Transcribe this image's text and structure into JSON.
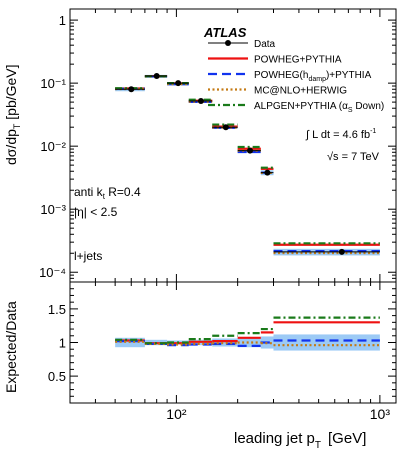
{
  "chart_data": {
    "type": "line",
    "experiment": "ATLAS",
    "xlabel_main": "leading jet p",
    "xlabel_sub": "T",
    "xlabel_unit": "[GeV]",
    "ylabel_top_main": "dσ/dp",
    "ylabel_top_sub": "T",
    "ylabel_top_unit": "[pb/GeV]",
    "ylabel_ratio": "Expected/Data",
    "x_scale": "log",
    "xlim": [
      30,
      1200
    ],
    "ylim_top": [
      7e-05,
      1.5
    ],
    "y_scale_top": "log",
    "ylim_ratio": [
      0.1,
      1.9
    ],
    "x_tick_labels": [
      "10²",
      "10³"
    ],
    "y_tick_labels_top": [
      "1",
      "10⁻¹",
      "10⁻²",
      "10⁻³",
      "10⁻⁴"
    ],
    "y_tick_labels_ratio": [
      "1.5",
      "1",
      "0.5"
    ],
    "annotations": {
      "jet_alg": "anti k",
      "jet_alg_sub": "t",
      "jet_R": " R=0.4",
      "eta_cut": "|η| < 2.5",
      "channel": "l+jets",
      "lumi_prefix": "∫ L dt = 4.6 fb",
      "lumi_sup": "-1",
      "sqrt_s": "√s = 7 TeV"
    },
    "bins": [
      [
        50,
        70
      ],
      [
        70,
        90
      ],
      [
        90,
        115
      ],
      [
        115,
        150
      ],
      [
        150,
        200
      ],
      [
        200,
        260
      ],
      [
        260,
        300
      ],
      [
        300,
        1000
      ]
    ],
    "legend": [
      {
        "label": "Data",
        "color": "#000000",
        "style": "marker"
      },
      {
        "label": "POWHEG+PYTHIA",
        "color": "#ee1111",
        "style": "solid"
      },
      {
        "label": "POWHEG(h",
        "sub": "damp",
        "suffix": ")+PYTHIA",
        "color": "#1133ee",
        "style": "dashed"
      },
      {
        "label": "MC@NLO+HERWIG",
        "color": "#c47a14",
        "style": "dotted"
      },
      {
        "label": "ALPGEN+PYTHIA (α",
        "sub": "S",
        "suffix": " Down)",
        "color": "#1a7a1a",
        "style": "dashdot"
      }
    ],
    "data": {
      "x": [
        60,
        80,
        102,
        132,
        175,
        230,
        280,
        650
      ],
      "y": [
        0.08,
        0.13,
        0.1,
        0.052,
        0.02,
        0.0085,
        0.0038,
        0.00021
      ],
      "rel_unc": [
        0.07,
        0.04,
        0.03,
        0.04,
        0.06,
        0.07,
        0.09,
        0.12
      ]
    },
    "ratios": {
      "POWHEG+PYTHIA": [
        1.03,
        0.99,
        0.99,
        1.01,
        1.02,
        1.07,
        1.15,
        1.3
      ],
      "POWHEG(hdamp)+PYTHIA": [
        1.02,
        0.98,
        0.96,
        0.97,
        0.98,
        0.95,
        1.0,
        1.03
      ],
      "MC@NLO+HERWIG": [
        1.01,
        0.98,
        0.97,
        0.98,
        0.99,
        1.0,
        0.99,
        0.96
      ],
      "ALPGEN+PYTHIA (αS Down)": [
        1.04,
        0.99,
        1.0,
        1.05,
        1.1,
        1.14,
        1.2,
        1.37
      ]
    }
  }
}
